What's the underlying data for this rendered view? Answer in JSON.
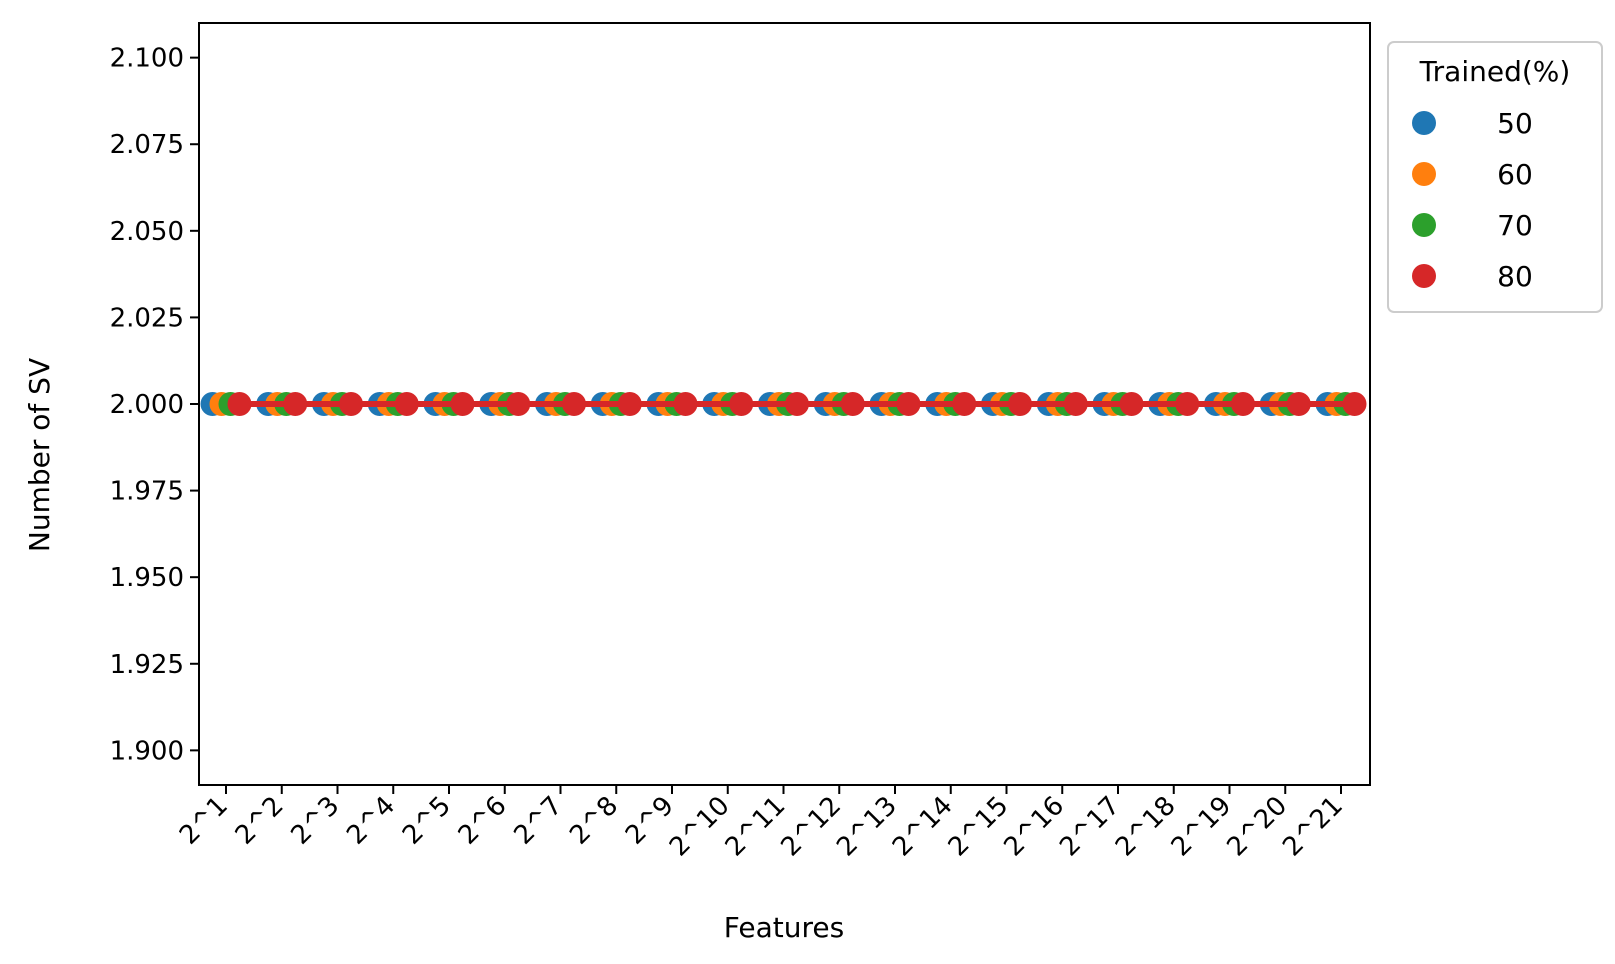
{
  "chart_data": {
    "type": "scatter",
    "title": "",
    "xlabel": "Features",
    "ylabel": "Number of SV",
    "categories": [
      "2^1",
      "2^2",
      "2^3",
      "2^4",
      "2^5",
      "2^6",
      "2^7",
      "2^8",
      "2^9",
      "2^10",
      "2^11",
      "2^12",
      "2^13",
      "2^14",
      "2^15",
      "2^16",
      "2^17",
      "2^18",
      "2^19",
      "2^20",
      "2^21"
    ],
    "ylim": [
      1.89,
      2.11
    ],
    "yticks": [
      "1.900",
      "1.925",
      "1.950",
      "1.975",
      "2.000",
      "2.025",
      "2.050",
      "2.075",
      "2.100"
    ],
    "grid": false,
    "legend": {
      "title": "Trained(%)",
      "placement": "outside-top-right"
    },
    "series": [
      {
        "name": "50",
        "color": "#1f77b4",
        "values": [
          2,
          2,
          2,
          2,
          2,
          2,
          2,
          2,
          2,
          2,
          2,
          2,
          2,
          2,
          2,
          2,
          2,
          2,
          2,
          2,
          2
        ]
      },
      {
        "name": "60",
        "color": "#ff7f0e",
        "values": [
          2,
          2,
          2,
          2,
          2,
          2,
          2,
          2,
          2,
          2,
          2,
          2,
          2,
          2,
          2,
          2,
          2,
          2,
          2,
          2,
          2
        ]
      },
      {
        "name": "70",
        "color": "#2ca02c",
        "values": [
          2,
          2,
          2,
          2,
          2,
          2,
          2,
          2,
          2,
          2,
          2,
          2,
          2,
          2,
          2,
          2,
          2,
          2,
          2,
          2,
          2
        ]
      },
      {
        "name": "80",
        "color": "#d62728",
        "values": [
          2,
          2,
          2,
          2,
          2,
          2,
          2,
          2,
          2,
          2,
          2,
          2,
          2,
          2,
          2,
          2,
          2,
          2,
          2,
          2,
          2
        ]
      }
    ]
  }
}
